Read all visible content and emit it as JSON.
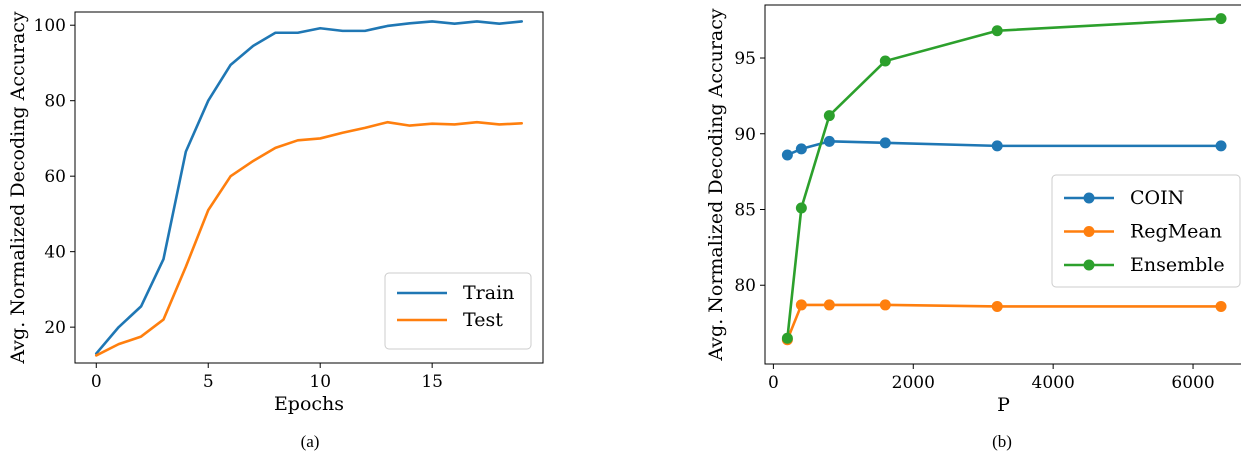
{
  "chart_data": [
    {
      "type": "line",
      "caption": "(a)",
      "xlabel": "Epochs",
      "ylabel": "Avg. Normalized Decoding Accuracy",
      "xlim": [
        -0.95,
        19.95
      ],
      "ylim": [
        10.5,
        103.5
      ],
      "xticks": [
        0,
        5,
        10,
        15
      ],
      "yticks": [
        20,
        40,
        60,
        80,
        100
      ],
      "legend": "bottom-right",
      "markers": false,
      "x": [
        0,
        1,
        2,
        3,
        4,
        5,
        6,
        7,
        8,
        9,
        10,
        11,
        12,
        13,
        14,
        15,
        16,
        17,
        18,
        19
      ],
      "series": [
        {
          "name": "Train",
          "color": "#1f77b4",
          "values": [
            13,
            20,
            25.5,
            38,
            66.5,
            80,
            89.5,
            94.5,
            98,
            98,
            99.2,
            98.5,
            98.5,
            99.8,
            100.5,
            101,
            100.4,
            101,
            100.4,
            101
          ]
        },
        {
          "name": "Test",
          "color": "#ff7f0e",
          "values": [
            12.5,
            15.5,
            17.5,
            22,
            36,
            51,
            60,
            64,
            67.5,
            69.5,
            70,
            71.5,
            72.8,
            74.3,
            73.4,
            73.9,
            73.7,
            74.3,
            73.7,
            74
          ]
        }
      ]
    },
    {
      "type": "line",
      "caption": "(b)",
      "xlabel": "P",
      "ylabel": "Avg. Normalized Decoding Accuracy",
      "xlim": [
        -120,
        6700
      ],
      "ylim": [
        74.8,
        98.5
      ],
      "xticks": [
        0,
        2000,
        4000,
        6000
      ],
      "yticks": [
        80,
        85,
        90,
        95
      ],
      "legend": "center-right",
      "markers": true,
      "x": [
        200,
        400,
        800,
        1600,
        3200,
        6400
      ],
      "series": [
        {
          "name": "COIN",
          "color": "#1f77b4",
          "values": [
            88.6,
            89,
            89.5,
            89.4,
            89.2,
            89.2
          ]
        },
        {
          "name": "RegMean",
          "color": "#ff7f0e",
          "values": [
            76.4,
            78.7,
            78.7,
            78.7,
            78.6,
            78.6
          ]
        },
        {
          "name": "Ensemble",
          "color": "#2ca02c",
          "values": [
            76.5,
            85.1,
            91.2,
            94.8,
            96.8,
            97.6
          ]
        }
      ]
    }
  ]
}
